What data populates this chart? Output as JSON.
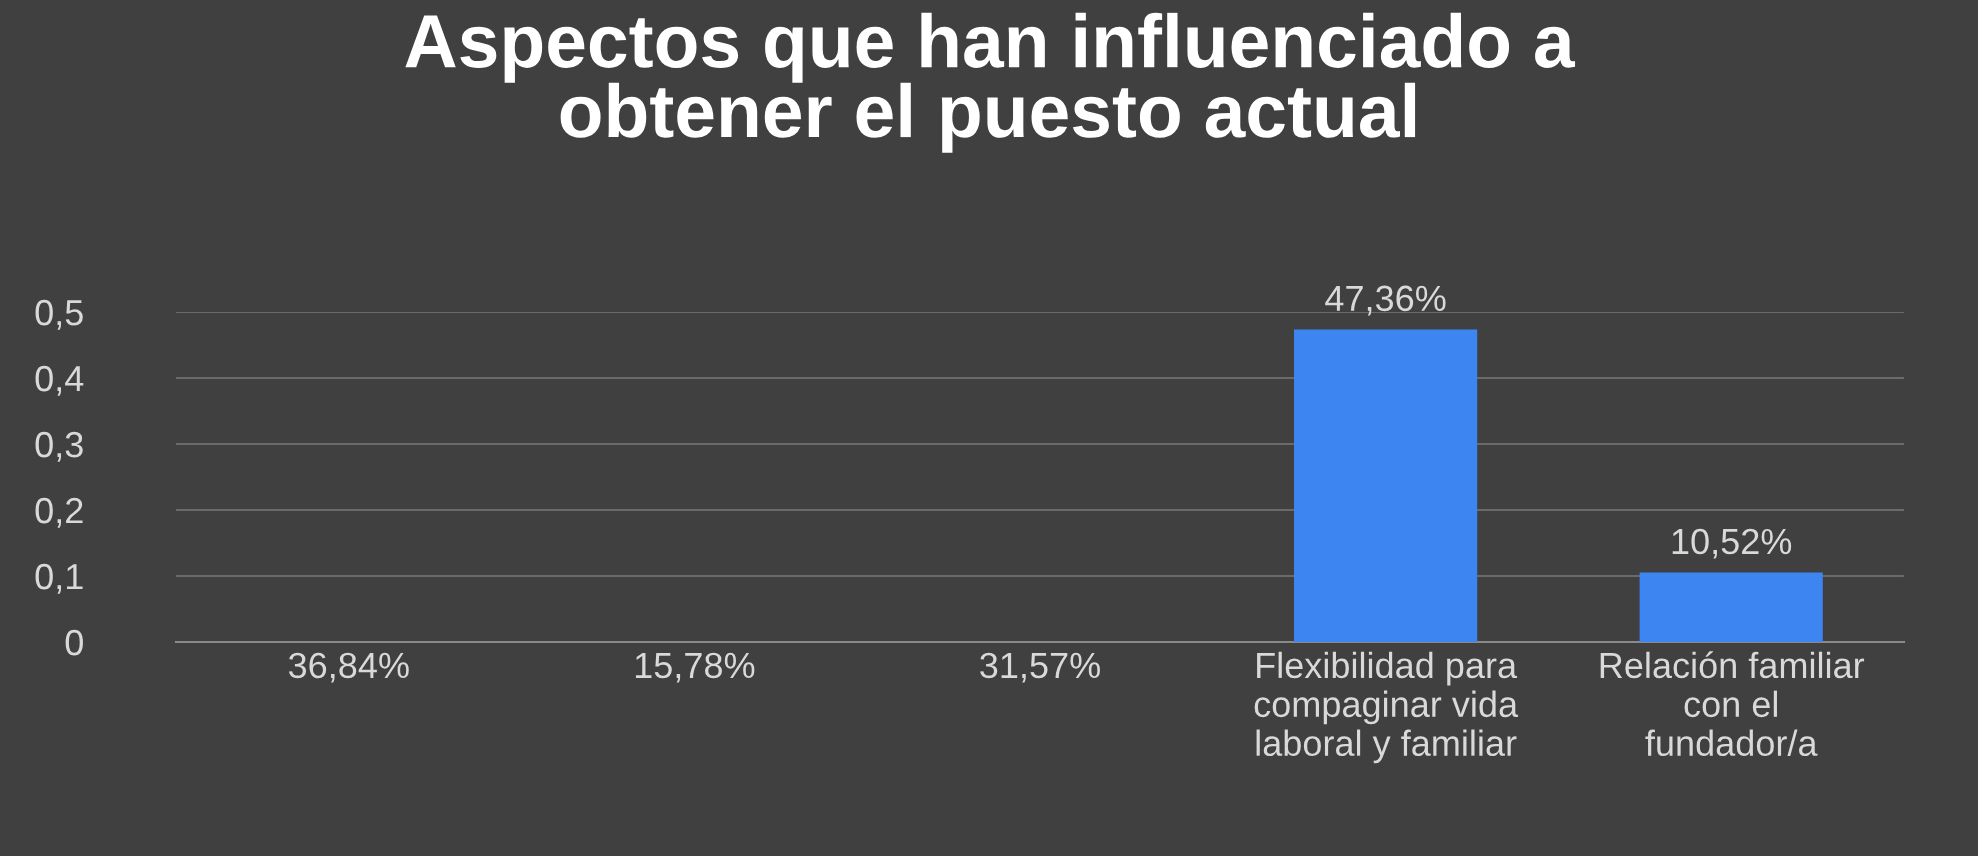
{
  "chart_data": {
    "type": "bar",
    "title": "Aspectos que han influenciado a\nobtener el puesto actual",
    "categories": [
      "36,84%",
      "15,78%",
      "31,57%",
      "Flexibilidad para\ncompaginar vida\nlaboral y familiar",
      "Relación familiar\ncon el\nfundador/a"
    ],
    "values": [
      0,
      0,
      0,
      0.4736,
      0.1052
    ],
    "value_labels": [
      null,
      null,
      null,
      "47,36%",
      "10,52%"
    ],
    "color": "#3d85f0",
    "ylim": [
      0,
      0.5
    ],
    "yticks": [
      0,
      {
        "value": 0.1,
        "label": "0,1"
      },
      {
        "value": 0.2,
        "label": "0,2"
      },
      {
        "value": 0.3,
        "label": "0,3"
      },
      {
        "value": 0.4,
        "label": "0,4"
      },
      {
        "value": 0.5,
        "label": "0,5"
      }
    ],
    "grid": "y",
    "legend": false
  }
}
